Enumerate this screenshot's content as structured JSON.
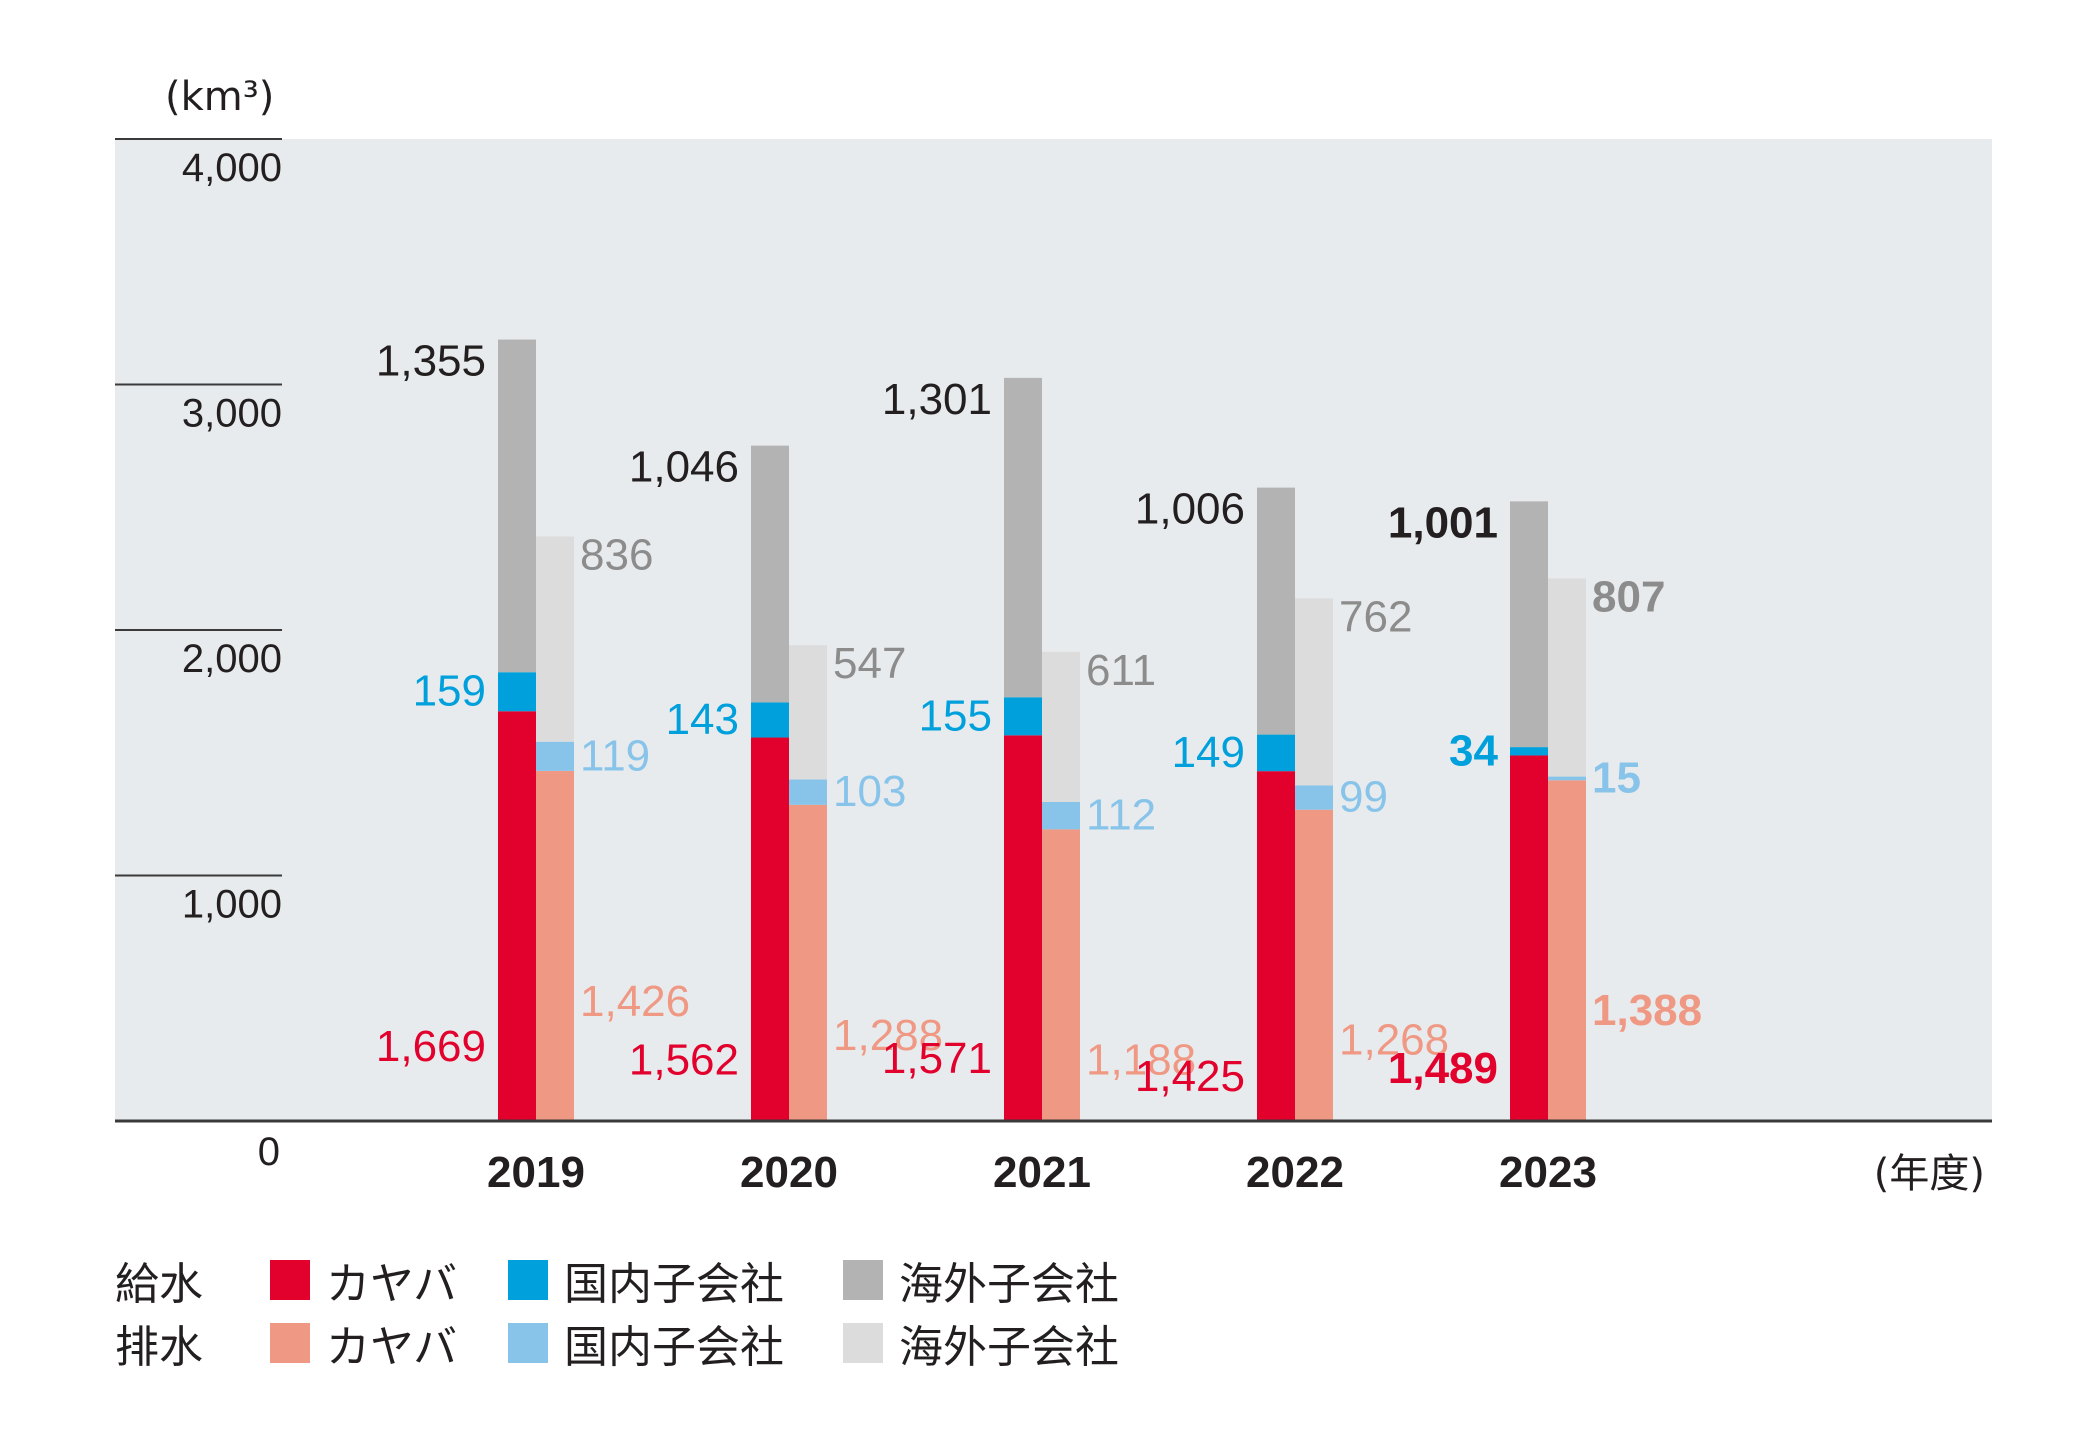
{
  "colors": {
    "plot_bg": "#e8ebed",
    "axis": "#3a3a3a",
    "kyb_supply": "#e2002d",
    "kyb_drain": "#ef9984",
    "domestic_supply": "#00a0dc",
    "domestic_drain": "#88c4ea",
    "overseas_supply": "#b3b3b3",
    "overseas_drain": "#dcdcdc",
    "label_black": "#231f20",
    "label_gray": "#8c8c8c"
  },
  "chart_data": {
    "type": "bar",
    "ylabel": "(km³)",
    "xlabel": "(年度)",
    "ylim": [
      0,
      4000
    ],
    "yticks": [
      "4,000",
      "3,000",
      "2,000",
      "1,000",
      "0"
    ],
    "ytick_values": [
      4000,
      3000,
      2000,
      1000,
      0
    ],
    "categories": [
      "2019",
      "2020",
      "2021",
      "2022",
      "2023"
    ],
    "stacks": [
      {
        "name": "給水",
        "series": [
          {
            "name": "カヤバ",
            "values": [
              1669,
              1562,
              1571,
              1425,
              1489
            ],
            "labels": [
              "1,669",
              "1,562",
              "1,571",
              "1,425",
              "1,489"
            ]
          },
          {
            "name": "国内子会社",
            "values": [
              159,
              143,
              155,
              149,
              34
            ],
            "labels": [
              "159",
              "143",
              "155",
              "149",
              "34"
            ]
          },
          {
            "name": "海外子会社",
            "values": [
              1355,
              1046,
              1301,
              1006,
              1001
            ],
            "labels": [
              "1,355",
              "1,046",
              "1,301",
              "1,006",
              "1,001"
            ]
          }
        ]
      },
      {
        "name": "排水",
        "series": [
          {
            "name": "カヤバ",
            "values": [
              1426,
              1288,
              1188,
              1268,
              1388
            ],
            "labels": [
              "1,426",
              "1,288",
              "1,188",
              "1,268",
              "1,388"
            ]
          },
          {
            "name": "国内子会社",
            "values": [
              119,
              103,
              112,
              99,
              15
            ],
            "labels": [
              "119",
              "103",
              "112",
              "99",
              "15"
            ]
          },
          {
            "name": "海外子会社",
            "values": [
              836,
              547,
              611,
              762,
              807
            ],
            "labels": [
              "836",
              "547",
              "611",
              "762",
              "807"
            ]
          }
        ]
      }
    ],
    "highlight_category": "2023"
  },
  "legend": {
    "rows": [
      {
        "label": "給水",
        "items": [
          "カヤバ",
          "国内子会社",
          "海外子会社"
        ]
      },
      {
        "label": "排水",
        "items": [
          "カヤバ",
          "国内子会社",
          "海外子会社"
        ]
      }
    ]
  }
}
